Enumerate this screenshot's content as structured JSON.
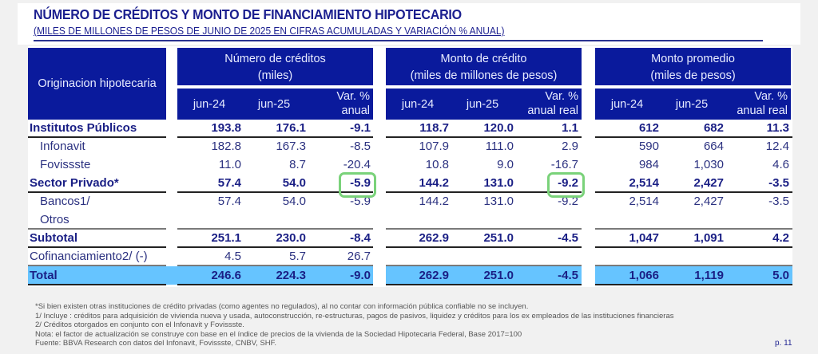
{
  "title": "NÚMERO DE CRÉDITOS Y MONTO DE FINANCIAMIENTO HIPOTECARIO",
  "subtitle": "(MILES DE MILLONES DE PESOS DE JUNIO DE 2025 EN CIFRAS ACUMULADAS Y VARIACIÓN % ANUAL)",
  "table": {
    "row_header": "Originacion hipotecaria",
    "groups": [
      {
        "title": "Número de créditos",
        "unit": "(miles)",
        "cols": [
          "jun-24",
          "jun-25"
        ],
        "var1": "Var. %",
        "var2": "anual"
      },
      {
        "title": "Monto de crédito",
        "unit": "(miles de millones de pesos)",
        "cols": [
          "jun-24",
          "jun-25"
        ],
        "var1": "Var. %",
        "var2": "anual real"
      },
      {
        "title": "Monto promedio",
        "unit": "(miles de pesos)",
        "cols": [
          "jun-24",
          "jun-25"
        ],
        "var1": "Var. %",
        "var2": "anual real"
      }
    ],
    "rows": [
      {
        "label": "Institutos Públicos",
        "v": [
          "193.8",
          "176.1",
          "-9.1",
          "118.7",
          "120.0",
          "1.1",
          "612",
          "682",
          "11.3"
        ]
      },
      {
        "label": "Infonavit",
        "v": [
          "182.8",
          "167.3",
          "-8.5",
          "107.9",
          "111.0",
          "2.9",
          "590",
          "664",
          "12.4"
        ]
      },
      {
        "label": "Fovissste",
        "v": [
          "11.0",
          "8.7",
          "-20.4",
          "10.8",
          "9.0",
          "-16.7",
          "984",
          "1,030",
          "4.6"
        ]
      },
      {
        "label": "Sector Privado*",
        "v": [
          "57.4",
          "54.0",
          "-5.9",
          "144.2",
          "131.0",
          "-9.2",
          "2,514",
          "2,427",
          "-3.5"
        ]
      },
      {
        "label": "Bancos1/",
        "v": [
          "57.4",
          "54.0",
          "-5.9",
          "144.2",
          "131.0",
          "-9.2",
          "2,514",
          "2,427",
          "-3.5"
        ]
      },
      {
        "label": "Otros",
        "v": [
          "",
          "",
          "",
          "",
          "",
          "",
          "",
          "",
          ""
        ]
      },
      {
        "label": "Subtotal",
        "v": [
          "251.1",
          "230.0",
          "-8.4",
          "262.9",
          "251.0",
          "-4.5",
          "1,047",
          "1,091",
          "4.2"
        ]
      },
      {
        "label": "Cofinanciamiento2/ (-)",
        "v": [
          "4.5",
          "5.7",
          "26.7",
          "",
          "",
          "",
          "",
          "",
          ""
        ]
      },
      {
        "label": "Total",
        "v": [
          "246.6",
          "224.3",
          "-9.0",
          "262.9",
          "251.0",
          "-4.5",
          "1,066",
          "1,119",
          "5.0"
        ]
      }
    ]
  },
  "highlight_color": "#7ad27a",
  "notes": [
    "*Si bien existen otras instituciones de crédito privadas (como agentes no regulados), al no contar con información pública confiable no se incluyen.",
    "1/ Incluye : créditos para adquisición de vivienda nueva y usada, autoconstrucción, re-estructuras, pagos de pasivos, liquidez y créditos para los ex empleados de las instituciones financieras",
    "2/ Créditos otorgados en conjunto con el Infonavit y Fovissste.",
    "Nota: el factor de actualización se construye con base en el índice de precios de la vivienda de la Sociedad Hipotecaria Federal, Base 2017=100",
    "Fuente: BBVA Research con datos del Infonavit, Fovissste, CNBV, SHF."
  ],
  "page": "p. 11"
}
